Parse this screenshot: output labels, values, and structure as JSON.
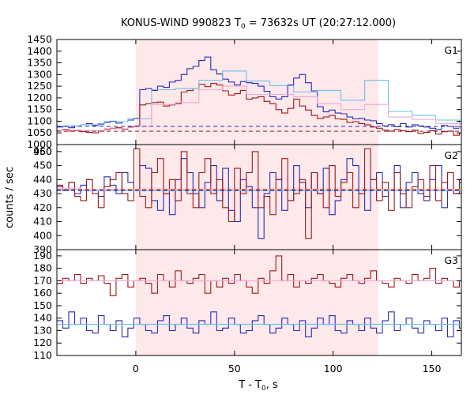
{
  "chart_data": {
    "type": "line",
    "title": "KONUS-WIND 990823 T",
    "title_sub": "0",
    "title_rest": " = 73632s UT (20:27:12.000)",
    "xlabel": "T - T",
    "xlabel_sub": "0",
    "xlabel_rest": ", s",
    "ylabel": "counts / sec",
    "xlim": [
      -40,
      165
    ],
    "x_ticks": [
      0,
      50,
      100,
      150
    ],
    "x_tick_labels": [
      "0",
      "50",
      "100",
      "150"
    ],
    "highlight_interval": [
      0,
      123
    ],
    "colors": {
      "dark_blue": "#2b2bb8",
      "dark_red": "#a01818",
      "light_blue": "#6ec0f0",
      "pink": "#f0a8d8",
      "highlight": "#fde8ea"
    },
    "panels": [
      {
        "label": "G1",
        "ylim": [
          1000,
          1450
        ],
        "y_ticks": [
          1000,
          1050,
          1100,
          1150,
          1200,
          1250,
          1300,
          1350,
          1400,
          1450
        ],
        "y_tick_labels": [
          "1000",
          "1050",
          "1100",
          "1150",
          "1200",
          "1250",
          "1300",
          "1350",
          "1400",
          "1450"
        ],
        "extra_label": "950",
        "background_levels": [
          {
            "series": "blue",
            "value": 1078
          },
          {
            "series": "red",
            "value": 1057
          }
        ],
        "series": [
          {
            "color": "dark_blue",
            "start": -40,
            "step": 3,
            "values": [
              1075,
              1078,
              1072,
              1080,
              1085,
              1090,
              1082,
              1088,
              1095,
              1100,
              1092,
              1098,
              1105,
              1112,
              1235,
              1240,
              1232,
              1250,
              1245,
              1268,
              1275,
              1300,
              1325,
              1335,
              1360,
              1375,
              1320,
              1302,
              1280,
              1268,
              1255,
              1270,
              1265,
              1262,
              1250,
              1228,
              1205,
              1195,
              1205,
              1255,
              1285,
              1300,
              1265,
              1230,
              1162,
              1140,
              1148,
              1135,
              1132,
              1118,
              1110,
              1112,
              1105,
              1102,
              1090,
              1080,
              1085,
              1076,
              1090,
              1075,
              1085,
              1080,
              1075,
              1070,
              1065,
              1082,
              1078,
              1070,
              1075
            ]
          },
          {
            "color": "dark_red",
            "start": -40,
            "step": 3,
            "values": [
              1062,
              1065,
              1058,
              1060,
              1055,
              1052,
              1050,
              1058,
              1065,
              1070,
              1072,
              1065,
              1075,
              1080,
              1170,
              1175,
              1180,
              1182,
              1165,
              1170,
              1175,
              1225,
              1232,
              1240,
              1258,
              1248,
              1262,
              1255,
              1230,
              1212,
              1218,
              1232,
              1195,
              1200,
              1205,
              1185,
              1175,
              1150,
              1135,
              1155,
              1195,
              1165,
              1148,
              1125,
              1112,
              1118,
              1125,
              1110,
              1108,
              1095,
              1098,
              1090,
              1085,
              1075,
              1070,
              1062,
              1058,
              1065,
              1060,
              1055,
              1062,
              1048,
              1052,
              1060,
              1045,
              1055,
              1058,
              1040,
              1050
            ]
          },
          {
            "color": "light_blue",
            "start": -40,
            "step": 12,
            "values": [
              1080,
              1085,
              1098,
              1110,
              1235,
              1240,
              1275,
              1315,
              1272,
              1252,
              1225,
              1232,
              1190,
              1275,
              1142,
              1125,
              1105,
              1090
            ]
          },
          {
            "color": "pink",
            "start": -40,
            "step": 12,
            "values": [
              1062,
              1060,
              1068,
              1078,
              1172,
              1180,
              1235,
              1250,
              1215,
              1215,
              1205,
              1175,
              1150,
              1172,
              1118,
              1108,
              1090,
              1068
            ]
          }
        ]
      },
      {
        "label": "G2",
        "ylim": [
          390,
          465
        ],
        "y_ticks": [
          390,
          400,
          410,
          420,
          430,
          440,
          450,
          460
        ],
        "y_tick_labels": [
          "390",
          "400",
          "410",
          "420",
          "430",
          "440",
          "450",
          "460"
        ],
        "background_levels": [
          {
            "series": "blue",
            "value": 432
          },
          {
            "series": "red",
            "value": 433
          }
        ],
        "series": [
          {
            "color": "dark_blue",
            "start": -40,
            "step": 3,
            "values": [
              435,
              433,
              438,
              430,
              436,
              440,
              432,
              428,
              442,
              436,
              430,
              445,
              438,
              432,
              450,
              448,
              425,
              418,
              430,
              415,
              440,
              455,
              445,
              430,
              420,
              438,
              450,
              425,
              448,
              418,
              410,
              440,
              435,
              420,
              398,
              430,
              445,
              440,
              418,
              425,
              450,
              438,
              420,
              445,
              430,
              448,
              415,
              425,
              440,
              455,
              450,
              430,
              418,
              440,
              445,
              428,
              432,
              450,
              420,
              438,
              445,
              430,
              425,
              440,
              450,
              420,
              445,
              430,
              438
            ]
          },
          {
            "color": "dark_red",
            "start": -40,
            "step": 3,
            "values": [
              436,
              432,
              438,
              428,
              425,
              440,
              430,
              420,
              435,
              440,
              445,
              430,
              425,
              462,
              428,
              420,
              445,
              455,
              430,
              440,
              425,
              460,
              430,
              420,
              445,
              455,
              430,
              440,
              420,
              410,
              448,
              430,
              445,
              460,
              420,
              428,
              415,
              440,
              455,
              425,
              430,
              440,
              398,
              445,
              430,
              420,
              450,
              428,
              438,
              445,
              420,
              430,
              462,
              440,
              425,
              438,
              418,
              445,
              430,
              420,
              435,
              440,
              428,
              450,
              425,
              438,
              445,
              430,
              440
            ]
          },
          {
            "color": "light_blue",
            "start": -40,
            "step": 12,
            "values": [
              433,
              432,
              432,
              432,
              432,
              432,
              432,
              432,
              432,
              432,
              432,
              432,
              432,
              432,
              432,
              432,
              432,
              432
            ]
          },
          {
            "color": "pink",
            "start": -40,
            "step": 12,
            "values": [
              434,
              433,
              433,
              433,
              433,
              433,
              433,
              433,
              433,
              433,
              433,
              433,
              433,
              433,
              433,
              433,
              433,
              433
            ]
          }
        ]
      },
      {
        "label": "G3",
        "ylim": [
          110,
          195
        ],
        "y_ticks": [
          110,
          120,
          130,
          140,
          150,
          160,
          170,
          180,
          190
        ],
        "y_tick_labels": [
          "110",
          "120",
          "130",
          "140",
          "150",
          "160",
          "170",
          "180",
          "190"
        ],
        "background_levels": [],
        "series": [
          {
            "color": "dark_blue",
            "start": -40,
            "step": 3,
            "values": [
              138,
              132,
              145,
              135,
              140,
              130,
              128,
              142,
              135,
              130,
              138,
              125,
              132,
              140,
              135,
              130,
              128,
              138,
              142,
              130,
              135,
              140,
              132,
              128,
              138,
              135,
              145,
              130,
              132,
              140,
              135,
              128,
              130,
              138,
              142,
              135,
              128,
              132,
              140,
              135,
              130,
              138,
              125,
              132,
              140,
              135,
              142,
              130,
              128,
              138,
              135,
              130,
              140,
              132,
              128,
              138,
              145,
              130,
              135,
              140,
              132,
              128,
              138,
              135,
              130,
              140,
              125,
              138,
              132
            ]
          },
          {
            "color": "dark_red",
            "start": -40,
            "step": 3,
            "values": [
              168,
              172,
              170,
              175,
              168,
              172,
              170,
              174,
              168,
              158,
              172,
              175,
              165,
              170,
              172,
              168,
              160,
              175,
              170,
              165,
              178,
              170,
              168,
              172,
              175,
              160,
              170,
              165,
              172,
              168,
              175,
              170,
              165,
              160,
              172,
              168,
              178,
              190,
              170,
              175,
              165,
              170,
              168,
              172,
              175,
              170,
              168,
              165,
              172,
              175,
              170,
              168,
              172,
              178,
              170,
              168,
              165,
              172,
              170,
              168,
              175,
              170,
              172,
              180,
              168,
              172,
              170,
              165,
              170
            ]
          },
          {
            "color": "light_blue",
            "start": -40,
            "step": 12,
            "values": [
              135,
              135,
              135,
              135,
              135,
              135,
              135,
              135,
              135,
              135,
              135,
              135,
              135,
              135,
              135,
              135,
              135,
              135
            ]
          },
          {
            "color": "pink",
            "start": -40,
            "step": 12,
            "values": [
              170,
              170,
              170,
              170,
              170,
              170,
              170,
              170,
              170,
              170,
              170,
              170,
              170,
              170,
              170,
              170,
              170,
              170
            ]
          }
        ]
      }
    ]
  }
}
